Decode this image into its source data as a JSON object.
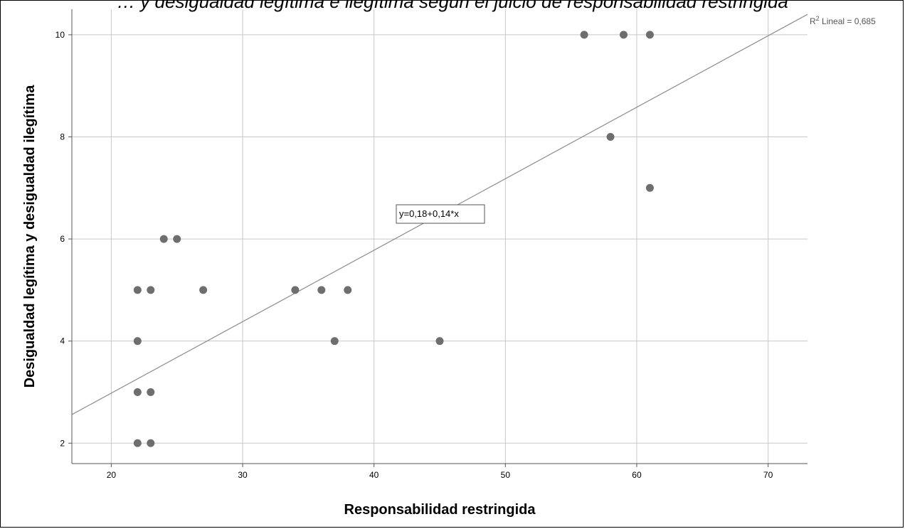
{
  "title_fragment": "… y desigualdad legítima e ilegítima según el juicio de responsabilidad restringida",
  "chart_data": {
    "type": "scatter",
    "xlabel": "Responsabilidad restringida",
    "ylabel": "Desigualdad legítima y desigualdad ilegítima",
    "xlim": [
      17,
      73
    ],
    "ylim": [
      1.6,
      10.5
    ],
    "xticks": [
      20,
      30,
      40,
      50,
      60,
      70
    ],
    "yticks": [
      2,
      4,
      6,
      8,
      10
    ],
    "grid": true,
    "points": [
      [
        22,
        2
      ],
      [
        23,
        2
      ],
      [
        22,
        3
      ],
      [
        23,
        3
      ],
      [
        22,
        4
      ],
      [
        22,
        5
      ],
      [
        23,
        5
      ],
      [
        24,
        6
      ],
      [
        25,
        6
      ],
      [
        27,
        5
      ],
      [
        34,
        5
      ],
      [
        36,
        5
      ],
      [
        37,
        4
      ],
      [
        38,
        5
      ],
      [
        45,
        4
      ],
      [
        56,
        10
      ],
      [
        58,
        8
      ],
      [
        59,
        10
      ],
      [
        61,
        10
      ],
      [
        61,
        7
      ]
    ],
    "fit_line": {
      "intercept": 0.18,
      "slope": 0.14
    },
    "fit_equation": "y=0,18+0,14*x",
    "r2_label_prefix": "R",
    "r2_label_sup": "2",
    "r2_label_rest": " Lineal = 0,685",
    "colors": {
      "points": "#6e6e6e",
      "fit_line": "#8c8c8c",
      "grid": "#c8c8c8",
      "axis": "#555555"
    }
  }
}
